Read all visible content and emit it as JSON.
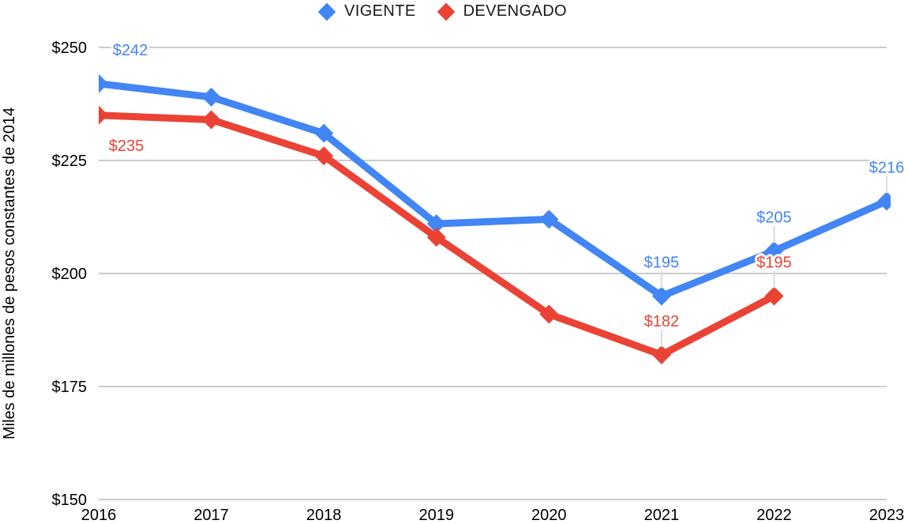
{
  "chart_data": {
    "type": "line",
    "title": "",
    "xlabel": "",
    "ylabel": "Miles de millones de pesos constantes de 2014",
    "categories": [
      "2016",
      "2017",
      "2018",
      "2019",
      "2020",
      "2021",
      "2022",
      "2023"
    ],
    "series": [
      {
        "name": "VIGENTE",
        "color": "#4285F4",
        "values": [
          242,
          239,
          231,
          211,
          212,
          195,
          205,
          216
        ],
        "point_labels": [
          {
            "index": 0,
            "text": "$242",
            "placement": "above-right",
            "leader": false
          },
          {
            "index": 5,
            "text": "$195",
            "placement": "above",
            "leader": true
          },
          {
            "index": 6,
            "text": "$205",
            "placement": "above",
            "leader": true
          },
          {
            "index": 7,
            "text": "$216",
            "placement": "above",
            "leader": true
          }
        ]
      },
      {
        "name": "DEVENGADO",
        "color": "#EA4335",
        "values": [
          235,
          234,
          226,
          208,
          191,
          182,
          195,
          null
        ],
        "point_labels": [
          {
            "index": 0,
            "text": "$235",
            "placement": "below-right",
            "leader": false
          },
          {
            "index": 5,
            "text": "$182",
            "placement": "above",
            "leader": true
          },
          {
            "index": 6,
            "text": "$195",
            "placement": "above",
            "leader": true
          }
        ]
      }
    ],
    "ylim": [
      150,
      250
    ],
    "yticks": [
      {
        "value": 250,
        "label": "$250"
      },
      {
        "value": 225,
        "label": "$225"
      },
      {
        "value": 200,
        "label": "$200"
      },
      {
        "value": 175,
        "label": "$175"
      },
      {
        "value": 150,
        "label": "$150"
      }
    ],
    "grid": true,
    "legend_position": "top",
    "colors": {
      "gridline": "#cccccc",
      "leader_line": "#dadce0",
      "tick_text": "#000000",
      "legend_text": "#181818",
      "background": "#ffffff"
    }
  }
}
